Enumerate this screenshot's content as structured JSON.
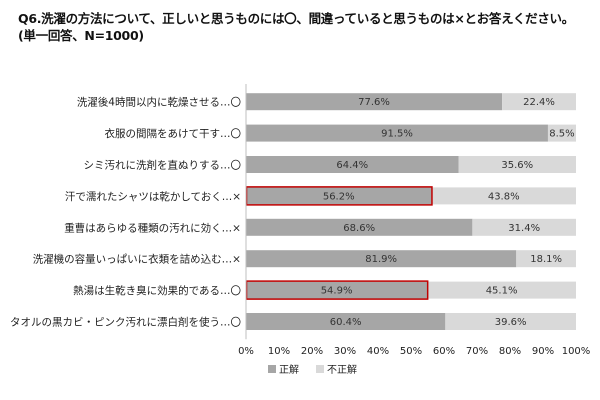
{
  "title_line1": "Q6.洗濯の方法について、正しいと思うものには〇、間違っていると思うものは×とお答えください。",
  "title_line2": "(単一回答、N=1000)",
  "chart_data": {
    "type": "bar",
    "orientation": "horizontal",
    "stacked": "percent",
    "categories": [
      "洗濯後4時間以内に乾燥させる…〇",
      "衣服の間隔をあけて干す…〇",
      "シミ汚れに洗剤を直ぬりする…〇",
      "汗で濡れたシャツは乾かしておく…×",
      "重曹はあらゆる種類の汚れに効く…×",
      "洗濯機の容量いっぱいに衣類を詰め込む…×",
      "熱湯は生乾き臭に効果的である…〇",
      "タオルの黒カビ・ピンク汚れに漂白剤を使う…〇"
    ],
    "series": [
      {
        "name": "正解",
        "color": "#a6a6a6",
        "values": [
          77.6,
          91.5,
          64.4,
          56.2,
          68.6,
          81.9,
          54.9,
          60.4
        ]
      },
      {
        "name": "不正解",
        "color": "#d9d9d9",
        "values": [
          22.4,
          8.5,
          35.6,
          43.8,
          31.4,
          18.1,
          45.1,
          39.6
        ]
      }
    ],
    "value_labels": [
      [
        "77.6%",
        "91.5%",
        "64.4%",
        "56.2%",
        "68.6%",
        "81.9%",
        "54.9%",
        "60.4%"
      ],
      [
        "22.4%",
        "8.5%",
        "35.6%",
        "43.8%",
        "31.4%",
        "18.1%",
        "45.1%",
        "39.6%"
      ]
    ],
    "highlighted_categories": [
      3,
      6
    ],
    "highlight_color": "#c00000",
    "xlim": [
      0,
      100
    ],
    "x_ticks": [
      "0%",
      "10%",
      "20%",
      "30%",
      "40%",
      "50%",
      "60%",
      "70%",
      "80%",
      "90%",
      "100%"
    ],
    "legend_position": "bottom",
    "grid": false
  }
}
